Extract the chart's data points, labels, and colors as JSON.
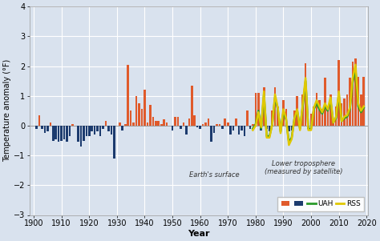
{
  "xlabel": "Year",
  "ylabel": "Temperature anomaly (°F)",
  "xlim": [
    1898.5,
    2020.5
  ],
  "ylim": [
    -3,
    4
  ],
  "yticks": [
    -3,
    -2,
    -1,
    0,
    1,
    2,
    3,
    4
  ],
  "xticks": [
    1900,
    1910,
    1920,
    1930,
    1940,
    1950,
    1960,
    1970,
    1980,
    1990,
    2000,
    2010,
    2020
  ],
  "bg_color": "#d9e2ee",
  "grid_color": "#ffffff",
  "bar_color_pos": "#e05a2b",
  "bar_color_neg": "#1c3b6e",
  "uah_color": "#2a9a2a",
  "rss_color": "#e0c800",
  "surface_data": {
    "years": [
      1901,
      1902,
      1903,
      1904,
      1905,
      1906,
      1907,
      1908,
      1909,
      1910,
      1911,
      1912,
      1913,
      1914,
      1915,
      1916,
      1917,
      1918,
      1919,
      1920,
      1921,
      1922,
      1923,
      1924,
      1925,
      1926,
      1927,
      1928,
      1929,
      1930,
      1931,
      1932,
      1933,
      1934,
      1935,
      1936,
      1937,
      1938,
      1939,
      1940,
      1941,
      1942,
      1943,
      1944,
      1945,
      1946,
      1947,
      1948,
      1949,
      1950,
      1951,
      1952,
      1953,
      1954,
      1955,
      1956,
      1957,
      1958,
      1959,
      1960,
      1961,
      1962,
      1963,
      1964,
      1965,
      1966,
      1967,
      1968,
      1969,
      1970,
      1971,
      1972,
      1973,
      1974,
      1975,
      1976,
      1977,
      1978,
      1979,
      1980,
      1981,
      1982,
      1983,
      1984,
      1985,
      1986,
      1987,
      1988,
      1989,
      1990,
      1991,
      1992,
      1993,
      1994,
      1995,
      1996,
      1997,
      1998,
      1999,
      2000,
      2001,
      2002,
      2003,
      2004,
      2005,
      2006,
      2007,
      2008,
      2009,
      2010,
      2011,
      2012,
      2013,
      2014,
      2015,
      2016,
      2017,
      2018,
      2019
    ],
    "values": [
      -0.1,
      0.35,
      -0.1,
      -0.25,
      -0.2,
      0.1,
      -0.5,
      -0.45,
      -0.55,
      -0.5,
      -0.45,
      -0.55,
      -0.35,
      0.05,
      0.0,
      -0.55,
      -0.7,
      -0.5,
      -0.35,
      -0.35,
      -0.2,
      -0.3,
      -0.2,
      -0.35,
      -0.1,
      0.15,
      -0.2,
      -0.3,
      -1.1,
      0.0,
      0.1,
      -0.15,
      0.05,
      2.05,
      0.5,
      0.1,
      1.0,
      0.75,
      0.55,
      1.2,
      0.1,
      0.7,
      0.3,
      0.15,
      0.15,
      0.05,
      0.2,
      0.1,
      0.0,
      -0.15,
      0.3,
      0.3,
      -0.1,
      0.1,
      -0.3,
      0.25,
      1.35,
      0.35,
      -0.05,
      -0.1,
      0.05,
      0.1,
      0.25,
      -0.55,
      -0.25,
      0.05,
      0.05,
      -0.1,
      0.25,
      0.1,
      -0.3,
      -0.15,
      0.25,
      -0.3,
      -0.15,
      -0.35,
      0.5,
      -0.1,
      0.05,
      1.1,
      1.1,
      -0.15,
      1.3,
      -0.1,
      -0.2,
      0.5,
      1.3,
      0.65,
      -0.2,
      0.85,
      0.55,
      -0.2,
      -0.15,
      0.5,
      1.0,
      -0.1,
      1.05,
      2.1,
      -0.1,
      0.4,
      0.65,
      1.1,
      0.85,
      0.55,
      1.6,
      0.55,
      1.05,
      0.2,
      0.65,
      2.2,
      0.75,
      0.9,
      1.05,
      1.6,
      2.15,
      2.25,
      1.65,
      1.05,
      1.65
    ]
  },
  "uah_data": {
    "years": [
      1979,
      1980,
      1981,
      1982,
      1983,
      1984,
      1985,
      1986,
      1987,
      1988,
      1989,
      1990,
      1991,
      1992,
      1993,
      1994,
      1995,
      1996,
      1997,
      1998,
      1999,
      2000,
      2001,
      2002,
      2003,
      2004,
      2005,
      2006,
      2007,
      2008,
      2009,
      2010,
      2011,
      2012,
      2013,
      2014,
      2015,
      2016,
      2017,
      2018,
      2019
    ],
    "values": [
      -0.1,
      0.05,
      0.5,
      -0.1,
      1.05,
      -0.35,
      -0.35,
      0.05,
      0.95,
      0.55,
      -0.2,
      0.45,
      0.2,
      -0.55,
      -0.4,
      0.25,
      0.5,
      -0.1,
      0.65,
      1.5,
      -0.1,
      -0.1,
      0.55,
      0.75,
      0.55,
      0.4,
      0.65,
      0.5,
      0.85,
      0.1,
      0.25,
      1.05,
      0.15,
      0.25,
      0.3,
      0.55,
      1.45,
      1.9,
      0.65,
      0.45,
      0.6
    ]
  },
  "rss_data": {
    "years": [
      1979,
      1980,
      1981,
      1982,
      1983,
      1984,
      1985,
      1986,
      1987,
      1988,
      1989,
      1990,
      1991,
      1992,
      1993,
      1994,
      1995,
      1996,
      1997,
      1998,
      1999,
      2000,
      2001,
      2002,
      2003,
      2004,
      2005,
      2006,
      2007,
      2008,
      2009,
      2010,
      2011,
      2012,
      2013,
      2014,
      2015,
      2016,
      2017,
      2018,
      2019
    ],
    "values": [
      -0.15,
      0.0,
      0.45,
      -0.05,
      1.15,
      -0.4,
      -0.4,
      0.05,
      1.05,
      0.6,
      -0.25,
      0.55,
      0.25,
      -0.65,
      -0.45,
      0.25,
      0.55,
      -0.15,
      0.75,
      1.6,
      -0.15,
      -0.15,
      0.6,
      0.85,
      0.65,
      0.45,
      0.75,
      0.55,
      0.95,
      0.1,
      0.3,
      1.15,
      0.15,
      0.3,
      0.35,
      0.6,
      1.6,
      2.05,
      0.75,
      0.5,
      0.65
    ]
  },
  "legend": {
    "earths_surface_label": "Earth's surface",
    "lower_tropo_label": "Lower troposphere\n(measured by satellite)",
    "uah_label": "UAH",
    "rss_label": "RSS"
  }
}
